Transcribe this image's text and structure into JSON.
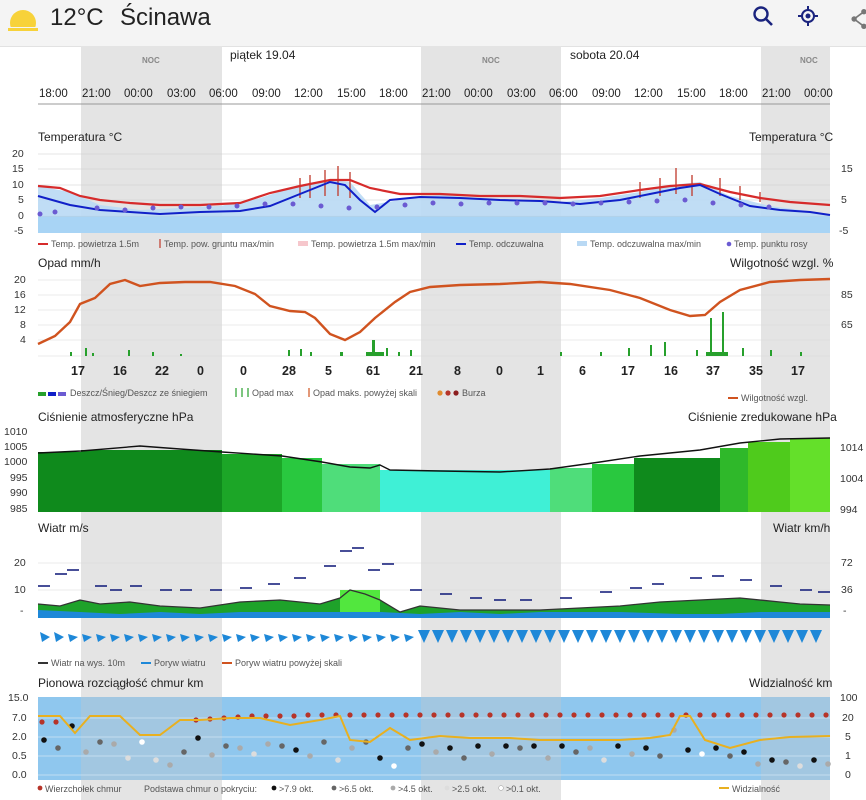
{
  "header": {
    "temperature": "12°C",
    "city": "Ścinawa",
    "icons": [
      "sun-icon",
      "search-icon",
      "locate-icon",
      "share-icon"
    ],
    "accent": "#1a237e"
  },
  "timeline": {
    "dates": [
      "piątek 19.04",
      "sobota 20.04"
    ],
    "night_label": "NOC",
    "hours": [
      "18:00",
      "21:00",
      "00:00",
      "03:00",
      "06:00",
      "09:00",
      "12:00",
      "15:00",
      "18:00",
      "21:00",
      "00:00",
      "03:00",
      "06:00",
      "09:00",
      "12:00",
      "15:00",
      "18:00",
      "21:00",
      "00:00"
    ]
  },
  "temperature": {
    "title_left": "Temperatura °C",
    "title_right": "Temperatura °C",
    "y_left": [
      "20",
      "15",
      "10",
      "5",
      "0",
      "-5"
    ],
    "y_right": [
      "15",
      "5",
      "-5"
    ],
    "legend": [
      "Temp. powietrza 1.5m",
      "Temp. pow. gruntu max/min",
      "Temp. powietrza 1.5m max/min",
      "Temp. odczuwalna",
      "Temp. odczuwalna max/min",
      "Temp. punktu rosy"
    ]
  },
  "precipitation": {
    "title_left": "Opad mm/h",
    "title_right": "Wilgotność wzgl. %",
    "y_left": [
      "20",
      "16",
      "12",
      "8",
      "4"
    ],
    "y_right": [
      "85",
      "65"
    ],
    "values": [
      "17",
      "16",
      "22",
      "0",
      "0",
      "28",
      "5",
      "61",
      "21",
      "8",
      "0",
      "1",
      "6",
      "17",
      "16",
      "37",
      "35",
      "17"
    ],
    "legend": [
      "Deszcz/Śnieg/Deszcz ze śniegiem",
      "Opad max",
      "Opad maks. powyżej skali",
      "Burza",
      "Wilgotność wzgl."
    ]
  },
  "pressure": {
    "title_left": "Ciśnienie atmosferyczne hPa",
    "title_right": "Ciśnienie zredukowane hPa",
    "y_left": [
      "1010",
      "1005",
      "1000",
      "995",
      "990",
      "985"
    ],
    "y_right": [
      "1014",
      "1004",
      "994"
    ]
  },
  "wind": {
    "title_left": "Wiatr m/s",
    "title_right": "Wiatr km/h",
    "y_left": [
      "20",
      "10",
      "-"
    ],
    "y_right": [
      "72",
      "36",
      "-"
    ],
    "legend": [
      "Wiatr na wys. 10m",
      "Poryw wiatru",
      "Poryw wiatru powyżej skali"
    ]
  },
  "clouds": {
    "title_left": "Pionowa rozciągłość chmur km",
    "title_right": "Widzialność km",
    "y_left": [
      "15.0",
      "7.0",
      "2.0",
      "0.5",
      "0.0"
    ],
    "y_right": [
      "100",
      "20",
      "5",
      "1",
      "0"
    ],
    "legend": [
      "Wierzchołek chmur",
      "Podstawa chmur o pokryciu:",
      ">7.9 okt.",
      ">6.5 okt.",
      ">4.5 okt.",
      ">2.5 okt.",
      ">0.1 okt.",
      "Widzialność"
    ]
  }
}
